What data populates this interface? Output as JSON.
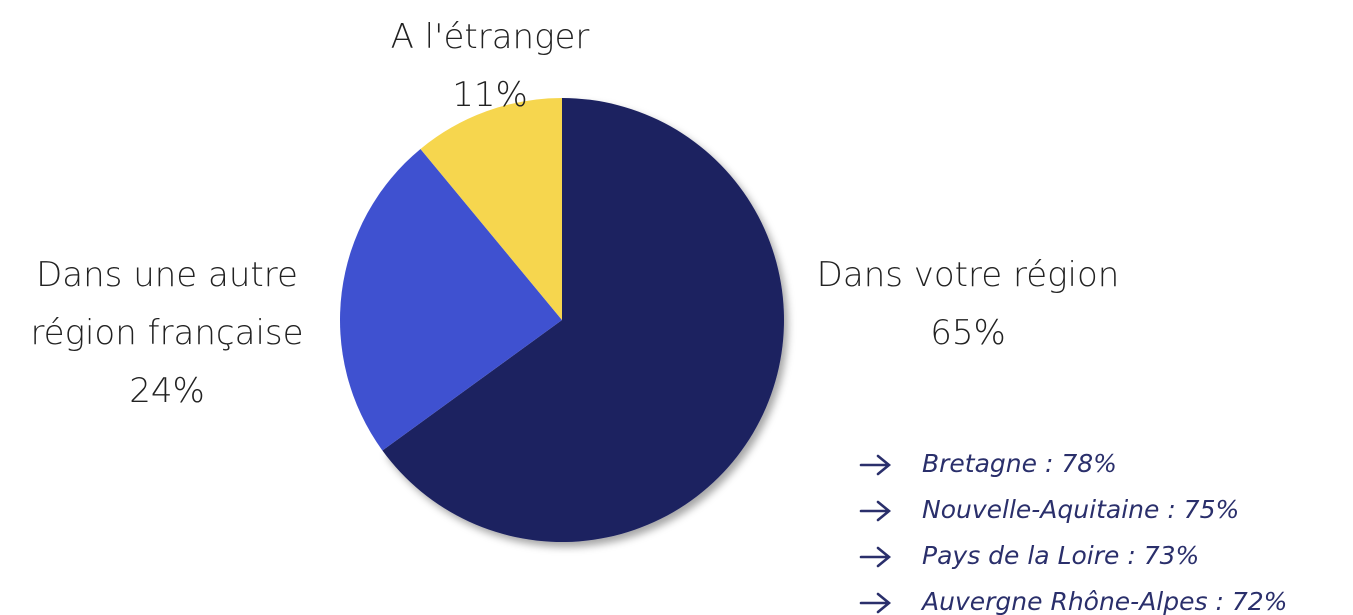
{
  "chart_data": {
    "type": "pie",
    "categories": [
      "Dans votre région",
      "Dans une autre région française",
      "A l'étranger"
    ],
    "values": [
      65,
      24,
      11
    ],
    "value_labels": [
      "65%",
      "24%",
      "11%"
    ],
    "colors": [
      "#1b2060",
      "#3f51d0",
      "#f6d64e"
    ],
    "start_angle": 0,
    "direction": "clockwise",
    "annotations": [
      "Bretagne : 78%",
      "Nouvelle-Aquitaine : 75%",
      "Pays de la Loire : 73%",
      "Auvergne Rhône-Alpes : 72%"
    ]
  }
}
